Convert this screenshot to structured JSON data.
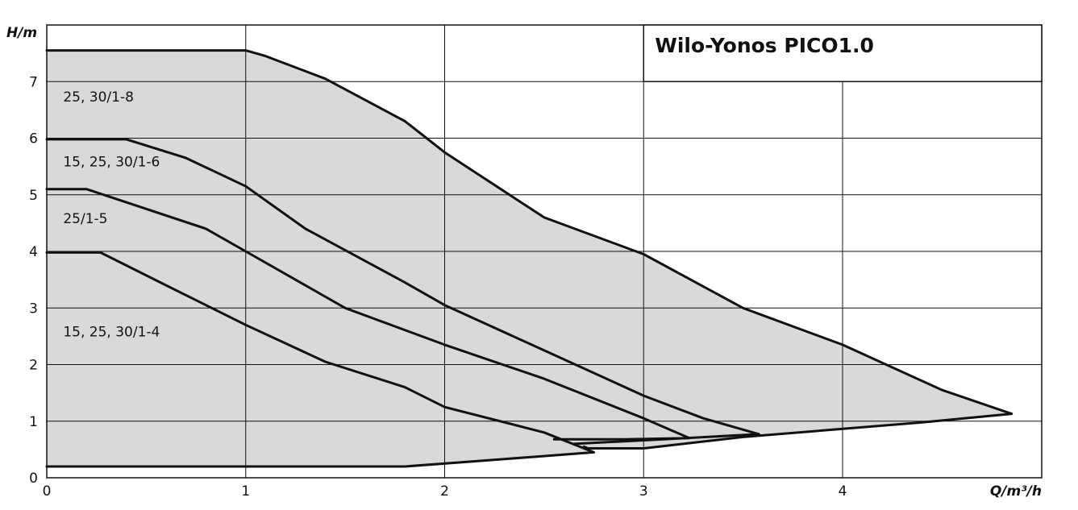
{
  "chart_data": {
    "type": "line",
    "title": "Wilo-Yonos PICO1.0",
    "xlabel": "Q/m³/h",
    "ylabel": "H/m",
    "xlim": [
      0,
      5
    ],
    "ylim": [
      0,
      8
    ],
    "x_ticks": [
      "0",
      "1",
      "2",
      "3",
      "4"
    ],
    "y_ticks": [
      "0",
      "1",
      "2",
      "3",
      "4",
      "5",
      "6",
      "7"
    ],
    "grid": true,
    "series": [
      {
        "name": "25, 30/1-8",
        "label_pos": [
          0.05,
          6.65
        ],
        "points": [
          [
            0,
            7.55
          ],
          [
            1.0,
            7.55
          ],
          [
            1.1,
            7.45
          ],
          [
            1.4,
            7.05
          ],
          [
            1.8,
            6.3
          ],
          [
            2.0,
            5.75
          ],
          [
            2.5,
            4.6
          ],
          [
            3.0,
            3.95
          ],
          [
            3.5,
            3.0
          ],
          [
            4.0,
            2.35
          ],
          [
            4.5,
            1.55
          ],
          [
            4.85,
            1.13
          ],
          [
            4.4,
            0.98
          ],
          [
            3.5,
            0.72
          ],
          [
            3.0,
            0.52
          ],
          [
            2.72,
            0.52
          ],
          [
            2.7,
            0.55
          ]
        ]
      },
      {
        "name": "15, 25, 30/1-6",
        "label_pos": [
          0.05,
          5.5
        ],
        "points": [
          [
            0,
            5.98
          ],
          [
            0.4,
            5.98
          ],
          [
            0.7,
            5.65
          ],
          [
            1.0,
            5.15
          ],
          [
            1.3,
            4.4
          ],
          [
            1.8,
            3.45
          ],
          [
            2.0,
            3.05
          ],
          [
            2.5,
            2.25
          ],
          [
            3.0,
            1.45
          ],
          [
            3.3,
            1.05
          ],
          [
            3.58,
            0.77
          ],
          [
            3.1,
            0.68
          ],
          [
            2.65,
            0.6
          ]
        ]
      },
      {
        "name": "25/1-5",
        "label_pos": [
          0.05,
          4.5
        ],
        "points": [
          [
            0,
            5.1
          ],
          [
            0.2,
            5.1
          ],
          [
            0.5,
            4.75
          ],
          [
            0.8,
            4.4
          ],
          [
            1.0,
            4.0
          ],
          [
            1.5,
            3.0
          ],
          [
            2.0,
            2.35
          ],
          [
            2.5,
            1.75
          ],
          [
            3.0,
            1.05
          ],
          [
            3.23,
            0.7
          ],
          [
            2.9,
            0.68
          ],
          [
            2.55,
            0.68
          ]
        ]
      },
      {
        "name": "15, 25, 30/1-4",
        "label_pos": [
          0.05,
          2.5
        ],
        "points": [
          [
            0,
            3.98
          ],
          [
            0.27,
            3.98
          ],
          [
            0.6,
            3.4
          ],
          [
            1.0,
            2.7
          ],
          [
            1.4,
            2.05
          ],
          [
            1.8,
            1.6
          ],
          [
            2.0,
            1.25
          ],
          [
            2.5,
            0.8
          ],
          [
            2.75,
            0.45
          ],
          [
            2.45,
            0.37
          ],
          [
            1.8,
            0.2
          ],
          [
            0,
            0.2
          ]
        ]
      }
    ],
    "shaded_region": [
      [
        0,
        7.55
      ],
      [
        1.0,
        7.55
      ],
      [
        1.1,
        7.45
      ],
      [
        1.4,
        7.05
      ],
      [
        1.8,
        6.3
      ],
      [
        2.0,
        5.75
      ],
      [
        2.5,
        4.6
      ],
      [
        3.0,
        3.95
      ],
      [
        3.5,
        3.0
      ],
      [
        4.0,
        2.35
      ],
      [
        4.5,
        1.55
      ],
      [
        4.85,
        1.13
      ],
      [
        4.4,
        0.98
      ],
      [
        3.5,
        0.72
      ],
      [
        3.0,
        0.52
      ],
      [
        2.72,
        0.52
      ],
      [
        2.7,
        0.55
      ],
      [
        2.75,
        0.45
      ],
      [
        2.45,
        0.37
      ],
      [
        1.8,
        0.2
      ],
      [
        0,
        0.2
      ]
    ]
  }
}
